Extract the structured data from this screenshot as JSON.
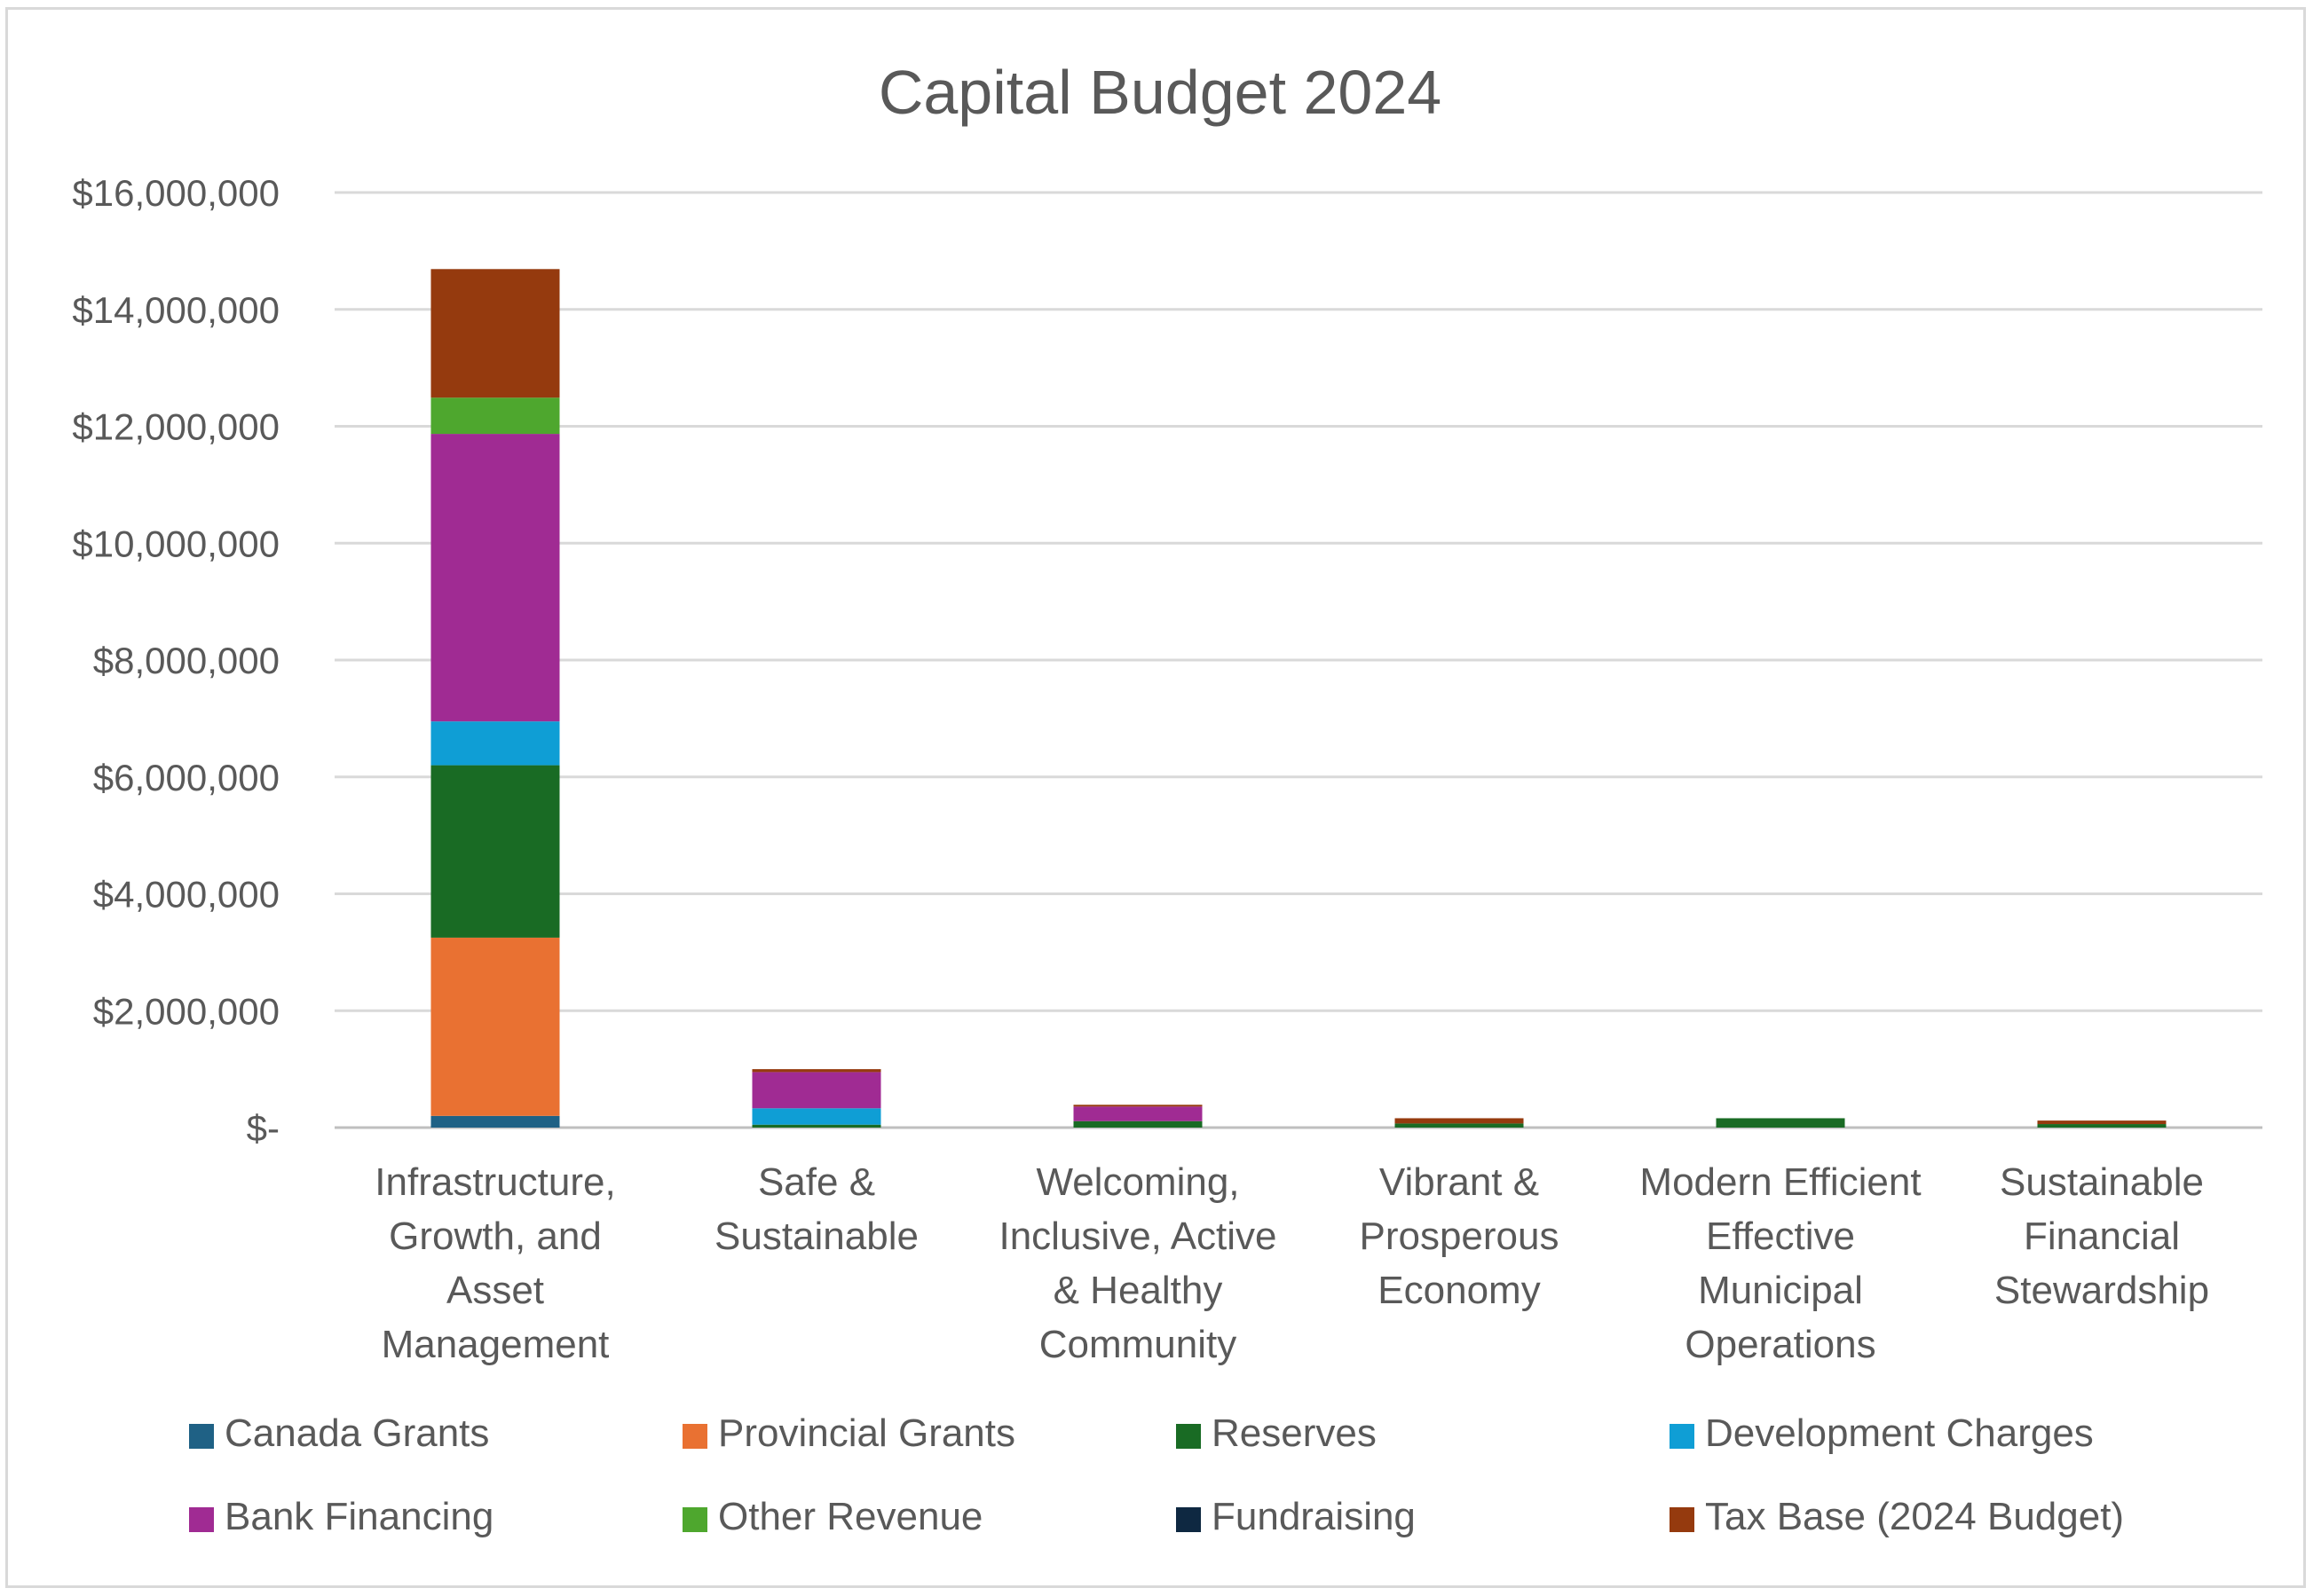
{
  "chart_data": {
    "type": "bar",
    "stacked": true,
    "title": "Capital Budget 2024",
    "xlabel": "",
    "ylabel": "",
    "ylim": [
      0,
      16000000
    ],
    "y_ticks": [
      0,
      2000000,
      4000000,
      6000000,
      8000000,
      10000000,
      12000000,
      14000000,
      16000000
    ],
    "y_tick_labels": [
      "$-",
      "$2,000,000",
      "$4,000,000",
      "$6,000,000",
      "$8,000,000",
      "$10,000,000",
      "$12,000,000",
      "$14,000,000",
      "$16,000,000"
    ],
    "grid": true,
    "legend_position": "bottom",
    "categories": [
      [
        "Infrastructure,",
        "Growth, and",
        "Asset",
        "Management"
      ],
      [
        "Safe &",
        "Sustainable"
      ],
      [
        "Welcoming,",
        "Inclusive, Active",
        "& Healthy",
        "Community"
      ],
      [
        "Vibrant &",
        "Prosperous",
        "Economy"
      ],
      [
        "Modern Efficient",
        "Effective",
        "Municipal",
        "Operations"
      ],
      [
        "Sustainable",
        "Financial",
        "Stewardship"
      ]
    ],
    "series": [
      {
        "name": "Canada Grants",
        "color": "#1f6185",
        "values": [
          200000,
          0,
          0,
          0,
          0,
          0
        ]
      },
      {
        "name": "Provincial Grants",
        "color": "#e97132",
        "values": [
          3050000,
          0,
          0,
          0,
          0,
          0
        ]
      },
      {
        "name": "Reserves",
        "color": "#196b24",
        "values": [
          2950000,
          50000,
          110000,
          70000,
          160000,
          60000
        ]
      },
      {
        "name": "Development Charges",
        "color": "#0f9ed5",
        "values": [
          750000,
          280000,
          0,
          0,
          0,
          0
        ]
      },
      {
        "name": "Bank Financing",
        "color": "#a02b93",
        "values": [
          4920000,
          620000,
          250000,
          0,
          0,
          0
        ]
      },
      {
        "name": "Other Revenue",
        "color": "#4ea72e",
        "values": [
          620000,
          0,
          0,
          0,
          0,
          0
        ]
      },
      {
        "name": "Fundraising",
        "color": "#0e2841",
        "values": [
          0,
          0,
          0,
          0,
          0,
          0
        ]
      },
      {
        "name": "Tax Base (2024 Budget)",
        "color": "#953a0e",
        "values": [
          2200000,
          50000,
          30000,
          90000,
          0,
          60000
        ]
      }
    ]
  }
}
